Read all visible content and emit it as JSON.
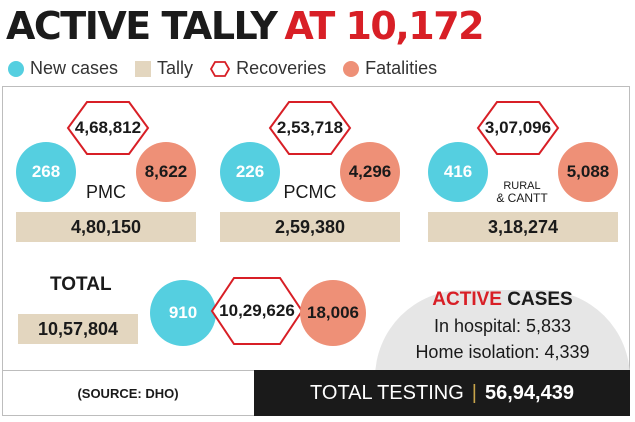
{
  "title": {
    "part1": "ACTIVE TALLY",
    "part2": "AT 10,172"
  },
  "legend": [
    {
      "label": "New cases",
      "color": "#55cfe0",
      "icon": "circle"
    },
    {
      "label": "Tally",
      "color": "#e3d6bf",
      "icon": "square"
    },
    {
      "label": "Recoveries",
      "color": "#d81f26",
      "icon": "hexagon-outline"
    },
    {
      "label": "Fatalities",
      "color": "#ee9077",
      "icon": "circle"
    }
  ],
  "regions": [
    {
      "name": "PMC",
      "new_cases": "268",
      "recoveries": "4,68,812",
      "fatalities": "8,622",
      "tally": "4,80,150"
    },
    {
      "name": "PCMC",
      "new_cases": "226",
      "recoveries": "2,53,718",
      "fatalities": "4,296",
      "tally": "2,59,380"
    },
    {
      "name_line1": "RURAL",
      "name_line2": "& CANTT",
      "new_cases": "416",
      "recoveries": "3,07,096",
      "fatalities": "5,088",
      "tally": "3,18,274"
    }
  ],
  "total": {
    "label": "TOTAL",
    "tally": "10,57,804",
    "new_cases": "910",
    "recoveries": "10,29,626",
    "fatalities": "18,006"
  },
  "active_cases": {
    "title_red": "ACTIVE",
    "title_black": "CASES",
    "hospital": "In hospital: 5,833",
    "home": "Home isolation: 4,339"
  },
  "footer": {
    "source": "(SOURCE: DHO)",
    "testing_label": "TOTAL TESTING",
    "separator": "|",
    "testing_value": "56,94,439"
  },
  "colors": {
    "accent_red": "#d81f26",
    "new_cases": "#55cfe0",
    "fatalities": "#ee9077",
    "tally": "#e3d6bf"
  }
}
